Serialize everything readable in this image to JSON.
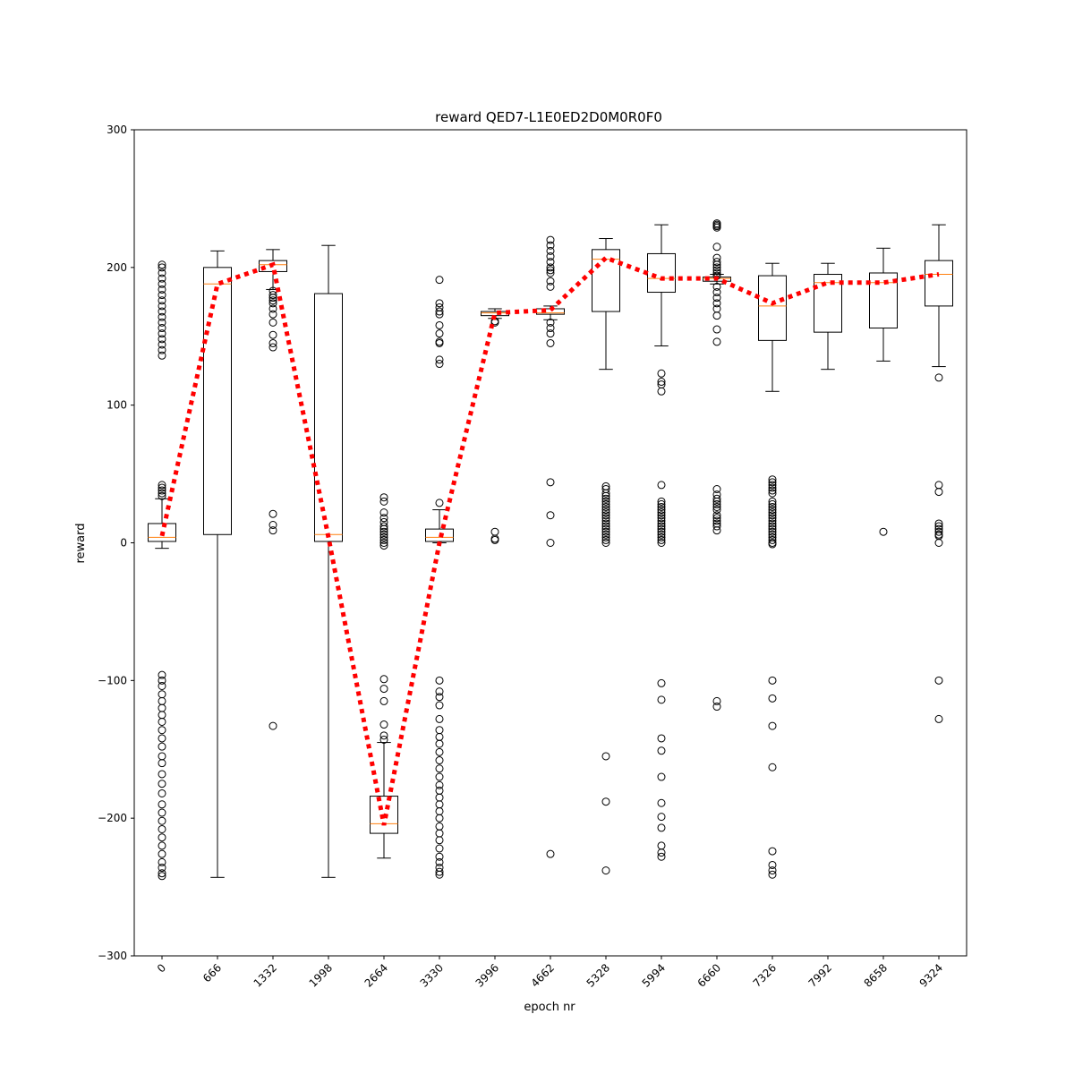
{
  "chart_data": {
    "type": "box",
    "title": "reward QED7-L1E0ED2D0M0R0F0",
    "xlabel": "epoch nr",
    "ylabel": "reward",
    "ylim": [
      -300,
      300
    ],
    "yticks": [
      -300,
      -200,
      -100,
      0,
      100,
      200,
      300
    ],
    "categories": [
      "0",
      "666",
      "1332",
      "1998",
      "2664",
      "3330",
      "3996",
      "4662",
      "5328",
      "5994",
      "6660",
      "7326",
      "7992",
      "8658",
      "9324"
    ],
    "boxes": [
      {
        "q1": 1,
        "median": 4,
        "q3": 14,
        "whisker_low": -4,
        "whisker_high": 32,
        "fliers": [
          202,
          200,
          196,
          192,
          188,
          184,
          180,
          176,
          172,
          168,
          164,
          160,
          156,
          152,
          148,
          144,
          140,
          136,
          42,
          40,
          38,
          36,
          34,
          -96,
          -100,
          -104,
          -110,
          -115,
          -120,
          -125,
          -130,
          -136,
          -142,
          -148,
          -155,
          -160,
          -168,
          -175,
          -182,
          -190,
          -196,
          -202,
          -208,
          -214,
          -220,
          -226,
          -232,
          -236,
          -240,
          -242
        ]
      },
      {
        "q1": 6,
        "median": 188,
        "q3": 200,
        "whisker_low": -243,
        "whisker_high": 212,
        "fliers": []
      },
      {
        "q1": 197,
        "median": 202,
        "q3": 205,
        "whisker_low": 184,
        "whisker_high": 213,
        "fliers": [
          183,
          180,
          178,
          176,
          174,
          170,
          166,
          160,
          151,
          145,
          142,
          21,
          13,
          9,
          -133
        ]
      },
      {
        "q1": 1,
        "median": 6,
        "q3": 181,
        "whisker_low": -243,
        "whisker_high": 216,
        "fliers": []
      },
      {
        "q1": -211,
        "median": -204,
        "q3": -184,
        "whisker_low": -229,
        "whisker_high": -145,
        "fliers": [
          33,
          30,
          22,
          18,
          15,
          12,
          10,
          8,
          6,
          4,
          2,
          0,
          -2,
          -99,
          -106,
          -115,
          -132,
          -140,
          -143
        ]
      },
      {
        "q1": 1,
        "median": 4,
        "q3": 10,
        "whisker_low": 0,
        "whisker_high": 24,
        "fliers": [
          191,
          174,
          171,
          168,
          166,
          158,
          152,
          146,
          145,
          133,
          130,
          29,
          -100,
          -108,
          -112,
          -118,
          -128,
          -136,
          -141,
          -146,
          -152,
          -158,
          -164,
          -170,
          -176,
          -180,
          -185,
          -190,
          -195,
          -200,
          -206,
          -211,
          -216,
          -222,
          -228,
          -232,
          -236,
          -239,
          -241
        ]
      },
      {
        "q1": 165,
        "median": 167,
        "q3": 168,
        "whisker_low": 163,
        "whisker_high": 170,
        "fliers": [
          161,
          160,
          8,
          3,
          2
        ]
      },
      {
        "q1": 166,
        "median": 167,
        "q3": 170,
        "whisker_low": 162,
        "whisker_high": 172,
        "fliers": [
          220,
          216,
          212,
          208,
          204,
          200,
          198,
          196,
          190,
          186,
          160,
          156,
          152,
          145,
          44,
          20,
          0,
          -226
        ]
      },
      {
        "q1": 168,
        "median": 206,
        "q3": 213,
        "whisker_low": 126,
        "whisker_high": 221,
        "fliers": [
          41,
          39,
          36,
          34,
          32,
          30,
          28,
          26,
          24,
          22,
          20,
          18,
          16,
          14,
          12,
          10,
          8,
          6,
          4,
          2,
          0,
          -155,
          -188,
          -238
        ]
      },
      {
        "q1": 182,
        "median": 192,
        "q3": 210,
        "whisker_low": 143,
        "whisker_high": 231,
        "fliers": [
          123,
          117,
          115,
          110,
          42,
          30,
          28,
          26,
          24,
          22,
          20,
          18,
          16,
          14,
          12,
          10,
          8,
          6,
          4,
          2,
          0,
          -102,
          -114,
          -142,
          -151,
          -170,
          -189,
          -199,
          -207,
          -220,
          -225,
          -228
        ]
      },
      {
        "q1": 190,
        "median": 192,
        "q3": 193,
        "whisker_low": 188,
        "whisker_high": 195,
        "fliers": [
          232,
          231,
          230,
          229,
          215,
          207,
          204,
          202,
          200,
          198,
          196,
          194,
          186,
          182,
          178,
          174,
          170,
          165,
          155,
          146,
          39,
          35,
          32,
          30,
          28,
          26,
          24,
          20,
          18,
          16,
          14,
          12,
          9,
          -115,
          -119
        ]
      },
      {
        "q1": 147,
        "median": 172,
        "q3": 194,
        "whisker_low": 110,
        "whisker_high": 203,
        "fliers": [
          46,
          44,
          42,
          40,
          38,
          36,
          30,
          28,
          26,
          24,
          22,
          20,
          18,
          16,
          14,
          12,
          10,
          8,
          6,
          4,
          2,
          0,
          -1,
          -100,
          -113,
          -133,
          -163,
          -224,
          -234,
          -238,
          -241
        ]
      },
      {
        "q1": 153,
        "median": 189,
        "q3": 195,
        "whisker_low": 126,
        "whisker_high": 203,
        "fliers": []
      },
      {
        "q1": 156,
        "median": 189,
        "q3": 196,
        "whisker_low": 132,
        "whisker_high": 214,
        "fliers": [
          8
        ]
      },
      {
        "q1": 172,
        "median": 195,
        "q3": 205,
        "whisker_low": 128,
        "whisker_high": 231,
        "fliers": [
          120,
          42,
          37,
          14,
          12,
          10,
          8,
          6,
          5,
          0,
          -100,
          -128
        ]
      }
    ],
    "trend_line": {
      "style": "dotted",
      "values": [
        5,
        188,
        202,
        4,
        -205,
        0,
        167,
        169,
        207,
        192,
        192,
        174,
        189,
        189,
        195
      ]
    },
    "colors": {
      "box": "#000000",
      "median": "#ff7f0e",
      "trend": "#ff0000",
      "flier": "#000000"
    },
    "grid": false,
    "legend": "none"
  }
}
